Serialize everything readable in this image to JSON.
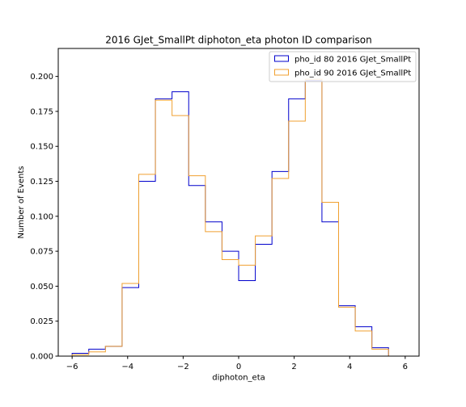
{
  "chart_data": {
    "type": "step-histogram",
    "title": "2016 GJet_SmallPt diphoton_eta photon ID comparison",
    "xlabel": "diphoton_eta",
    "ylabel": "Number of Events",
    "xlim": [
      -6.5,
      6.5
    ],
    "ylim": [
      0,
      0.22
    ],
    "xticks": [
      -6,
      -4,
      -2,
      0,
      2,
      4,
      6
    ],
    "xtick_labels": [
      "−6",
      "−4",
      "−2",
      "0",
      "2",
      "4",
      "6"
    ],
    "yticks": [
      0,
      0.025,
      0.05,
      0.075,
      0.1,
      0.125,
      0.15,
      0.175,
      0.2
    ],
    "ytick_labels": [
      "0.000",
      "0.025",
      "0.050",
      "0.075",
      "0.100",
      "0.125",
      "0.150",
      "0.175",
      "0.200"
    ],
    "grid": false,
    "legend_position": "upper right",
    "bin_edges": [
      -6.0,
      -5.4,
      -4.8,
      -4.2,
      -3.6,
      -3.0,
      -2.4,
      -1.8,
      -1.2,
      -0.6,
      0.0,
      0.6,
      1.2,
      1.8,
      2.4,
      3.0,
      3.6,
      4.2,
      4.8,
      5.4
    ],
    "series": [
      {
        "name": "pho_id 80 2016 GJet_SmallPt",
        "color": "#0000cc",
        "values": [
          0.002,
          0.005,
          0.007,
          0.049,
          0.125,
          0.184,
          0.189,
          0.122,
          0.096,
          0.075,
          0.054,
          0.08,
          0.132,
          0.184,
          0.197,
          0.096,
          0.036,
          0.021,
          0.006
        ]
      },
      {
        "name": "pho_id 90 2016 GJet_SmallPt",
        "color": "#f0a030",
        "values": [
          0.001,
          0.003,
          0.007,
          0.052,
          0.13,
          0.183,
          0.172,
          0.129,
          0.089,
          0.069,
          0.065,
          0.086,
          0.127,
          0.168,
          0.198,
          0.11,
          0.035,
          0.018,
          0.005
        ]
      }
    ]
  }
}
